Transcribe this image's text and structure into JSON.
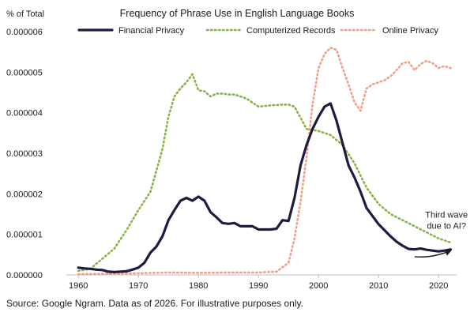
{
  "chart_data": {
    "type": "line",
    "title": "Frequency of Phrase Use in English Language Books",
    "ylabel": "% of Total",
    "xlabel": "",
    "xlim": [
      1958,
      2023
    ],
    "ylim": [
      0,
      6e-06
    ],
    "xticks": [
      1960,
      1970,
      1980,
      1990,
      2000,
      2010,
      2020
    ],
    "xtick_labels": [
      "1960",
      "1970",
      "1980",
      "1990",
      "2000",
      "2010",
      "2020"
    ],
    "yticks": [
      0,
      1e-06,
      2e-06,
      3e-06,
      4e-06,
      5e-06,
      6e-06
    ],
    "ytick_labels": [
      "0.000000",
      "0.000001",
      "0.000002",
      "0.000003",
      "0.000004",
      "0.000005",
      "0.000006"
    ],
    "grid": false,
    "legend_position": "top",
    "series": [
      {
        "name": "Financial Privacy",
        "color": "#1f1a40",
        "style": "solid",
        "x": [
          1960,
          1961,
          1962,
          1963,
          1964,
          1965,
          1966,
          1967,
          1968,
          1969,
          1970,
          1971,
          1972,
          1973,
          1974,
          1975,
          1976,
          1977,
          1978,
          1979,
          1980,
          1981,
          1982,
          1983,
          1984,
          1985,
          1986,
          1987,
          1988,
          1989,
          1990,
          1991,
          1992,
          1993,
          1994,
          1995,
          1996,
          1997,
          1998,
          1999,
          2000,
          2001,
          2002,
          2003,
          2004,
          2005,
          2006,
          2007,
          2008,
          2009,
          2010,
          2011,
          2012,
          2013,
          2014,
          2015,
          2016,
          2017,
          2018,
          2019,
          2020,
          2021,
          2022
        ],
        "values": [
          1.8e-07,
          1.6e-07,
          1.5e-07,
          1.3e-07,
          1.2e-07,
          8e-08,
          7e-08,
          8e-08,
          9e-08,
          1.3e-07,
          1.8e-07,
          3e-07,
          5.5e-07,
          7e-07,
          9.5e-07,
          1.35e-06,
          1.6e-06,
          1.83e-06,
          1.9e-06,
          1.83e-06,
          1.93e-06,
          1.83e-06,
          1.55e-06,
          1.42e-06,
          1.28e-06,
          1.26e-06,
          1.28e-06,
          1.2e-06,
          1.2e-06,
          1.2e-06,
          1.12e-06,
          1.12e-06,
          1.12e-06,
          1.14e-06,
          1.35e-06,
          1.33e-06,
          1.9e-06,
          2.7e-06,
          3.2e-06,
          3.6e-06,
          3.9e-06,
          4.15e-06,
          4.23e-06,
          3.8e-06,
          3.25e-06,
          2.7e-06,
          2.4e-06,
          2.05e-06,
          1.65e-06,
          1.45e-06,
          1.25e-06,
          1.1e-06,
          9.5e-07,
          8.2e-07,
          7.2e-07,
          6.4e-07,
          6.3e-07,
          6.5e-07,
          6.2e-07,
          6e-07,
          5.8e-07,
          6e-07,
          6.3e-07
        ]
      },
      {
        "name": "Computerized Records",
        "color": "#8ab34a",
        "style": "dotted",
        "x": [
          1960,
          1962,
          1964,
          1966,
          1968,
          1970,
          1972,
          1974,
          1975,
          1976,
          1977,
          1978,
          1979,
          1980,
          1981,
          1982,
          1983,
          1984,
          1985,
          1986,
          1987,
          1988,
          1990,
          1992,
          1994,
          1995,
          1996,
          1998,
          2000,
          2002,
          2004,
          2006,
          2008,
          2010,
          2012,
          2014,
          2016,
          2018,
          2020,
          2022
        ],
        "values": [
          1e-07,
          1.5e-07,
          4e-07,
          6.5e-07,
          1.1e-06,
          1.6e-06,
          2.05e-06,
          3.1e-06,
          3.9e-06,
          4.4e-06,
          4.6e-06,
          4.75e-06,
          4.95e-06,
          4.55e-06,
          4.53e-06,
          4.4e-06,
          4.47e-06,
          4.47e-06,
          4.45e-06,
          4.45e-06,
          4.4e-06,
          4.35e-06,
          4.15e-06,
          4.18e-06,
          4.2e-06,
          4.2e-06,
          4.15e-06,
          3.6e-06,
          3.55e-06,
          3.45e-06,
          3.2e-06,
          2.75e-06,
          2.15e-06,
          1.75e-06,
          1.5e-06,
          1.35e-06,
          1.2e-06,
          1.05e-06,
          9e-07,
          8e-07
        ]
      },
      {
        "name": "Online Privacy",
        "color": "#f2a08a",
        "style": "dotted",
        "x": [
          1960,
          1965,
          1970,
          1975,
          1980,
          1985,
          1990,
          1993,
          1995,
          1996,
          1997,
          1998,
          1999,
          2000,
          2001,
          2002,
          2003,
          2004,
          2005,
          2006,
          2007,
          2008,
          2009,
          2010,
          2011,
          2012,
          2013,
          2014,
          2015,
          2016,
          2017,
          2018,
          2019,
          2020,
          2021,
          2022
        ],
        "values": [
          2e-08,
          3e-08,
          4e-08,
          6e-08,
          5e-08,
          6e-08,
          6e-08,
          8e-08,
          3e-07,
          9e-07,
          1.8e-06,
          2.9e-06,
          4.2e-06,
          5.1e-06,
          5.45e-06,
          5.6e-06,
          5.55e-06,
          5.1e-06,
          4.7e-06,
          4.25e-06,
          4.05e-06,
          4.6e-06,
          4.7e-06,
          4.75e-06,
          4.8e-06,
          4.9e-06,
          5.05e-06,
          5.22e-06,
          5.25e-06,
          5.05e-06,
          5.2e-06,
          5.28e-06,
          5.22e-06,
          5.1e-06,
          5.15e-06,
          5.1e-06
        ]
      }
    ],
    "annotations": [
      {
        "lines": [
          "Third wave",
          "due to AI?"
        ],
        "x": 2020,
        "y": 1.3e-06
      }
    ],
    "arrow": {
      "x": [
        2016,
        2022
      ],
      "y": [
        4.5e-07,
        6e-07
      ]
    }
  },
  "footer": {
    "source": "Source: Google Ngram. Data as of 2026. For illustrative purposes only."
  }
}
